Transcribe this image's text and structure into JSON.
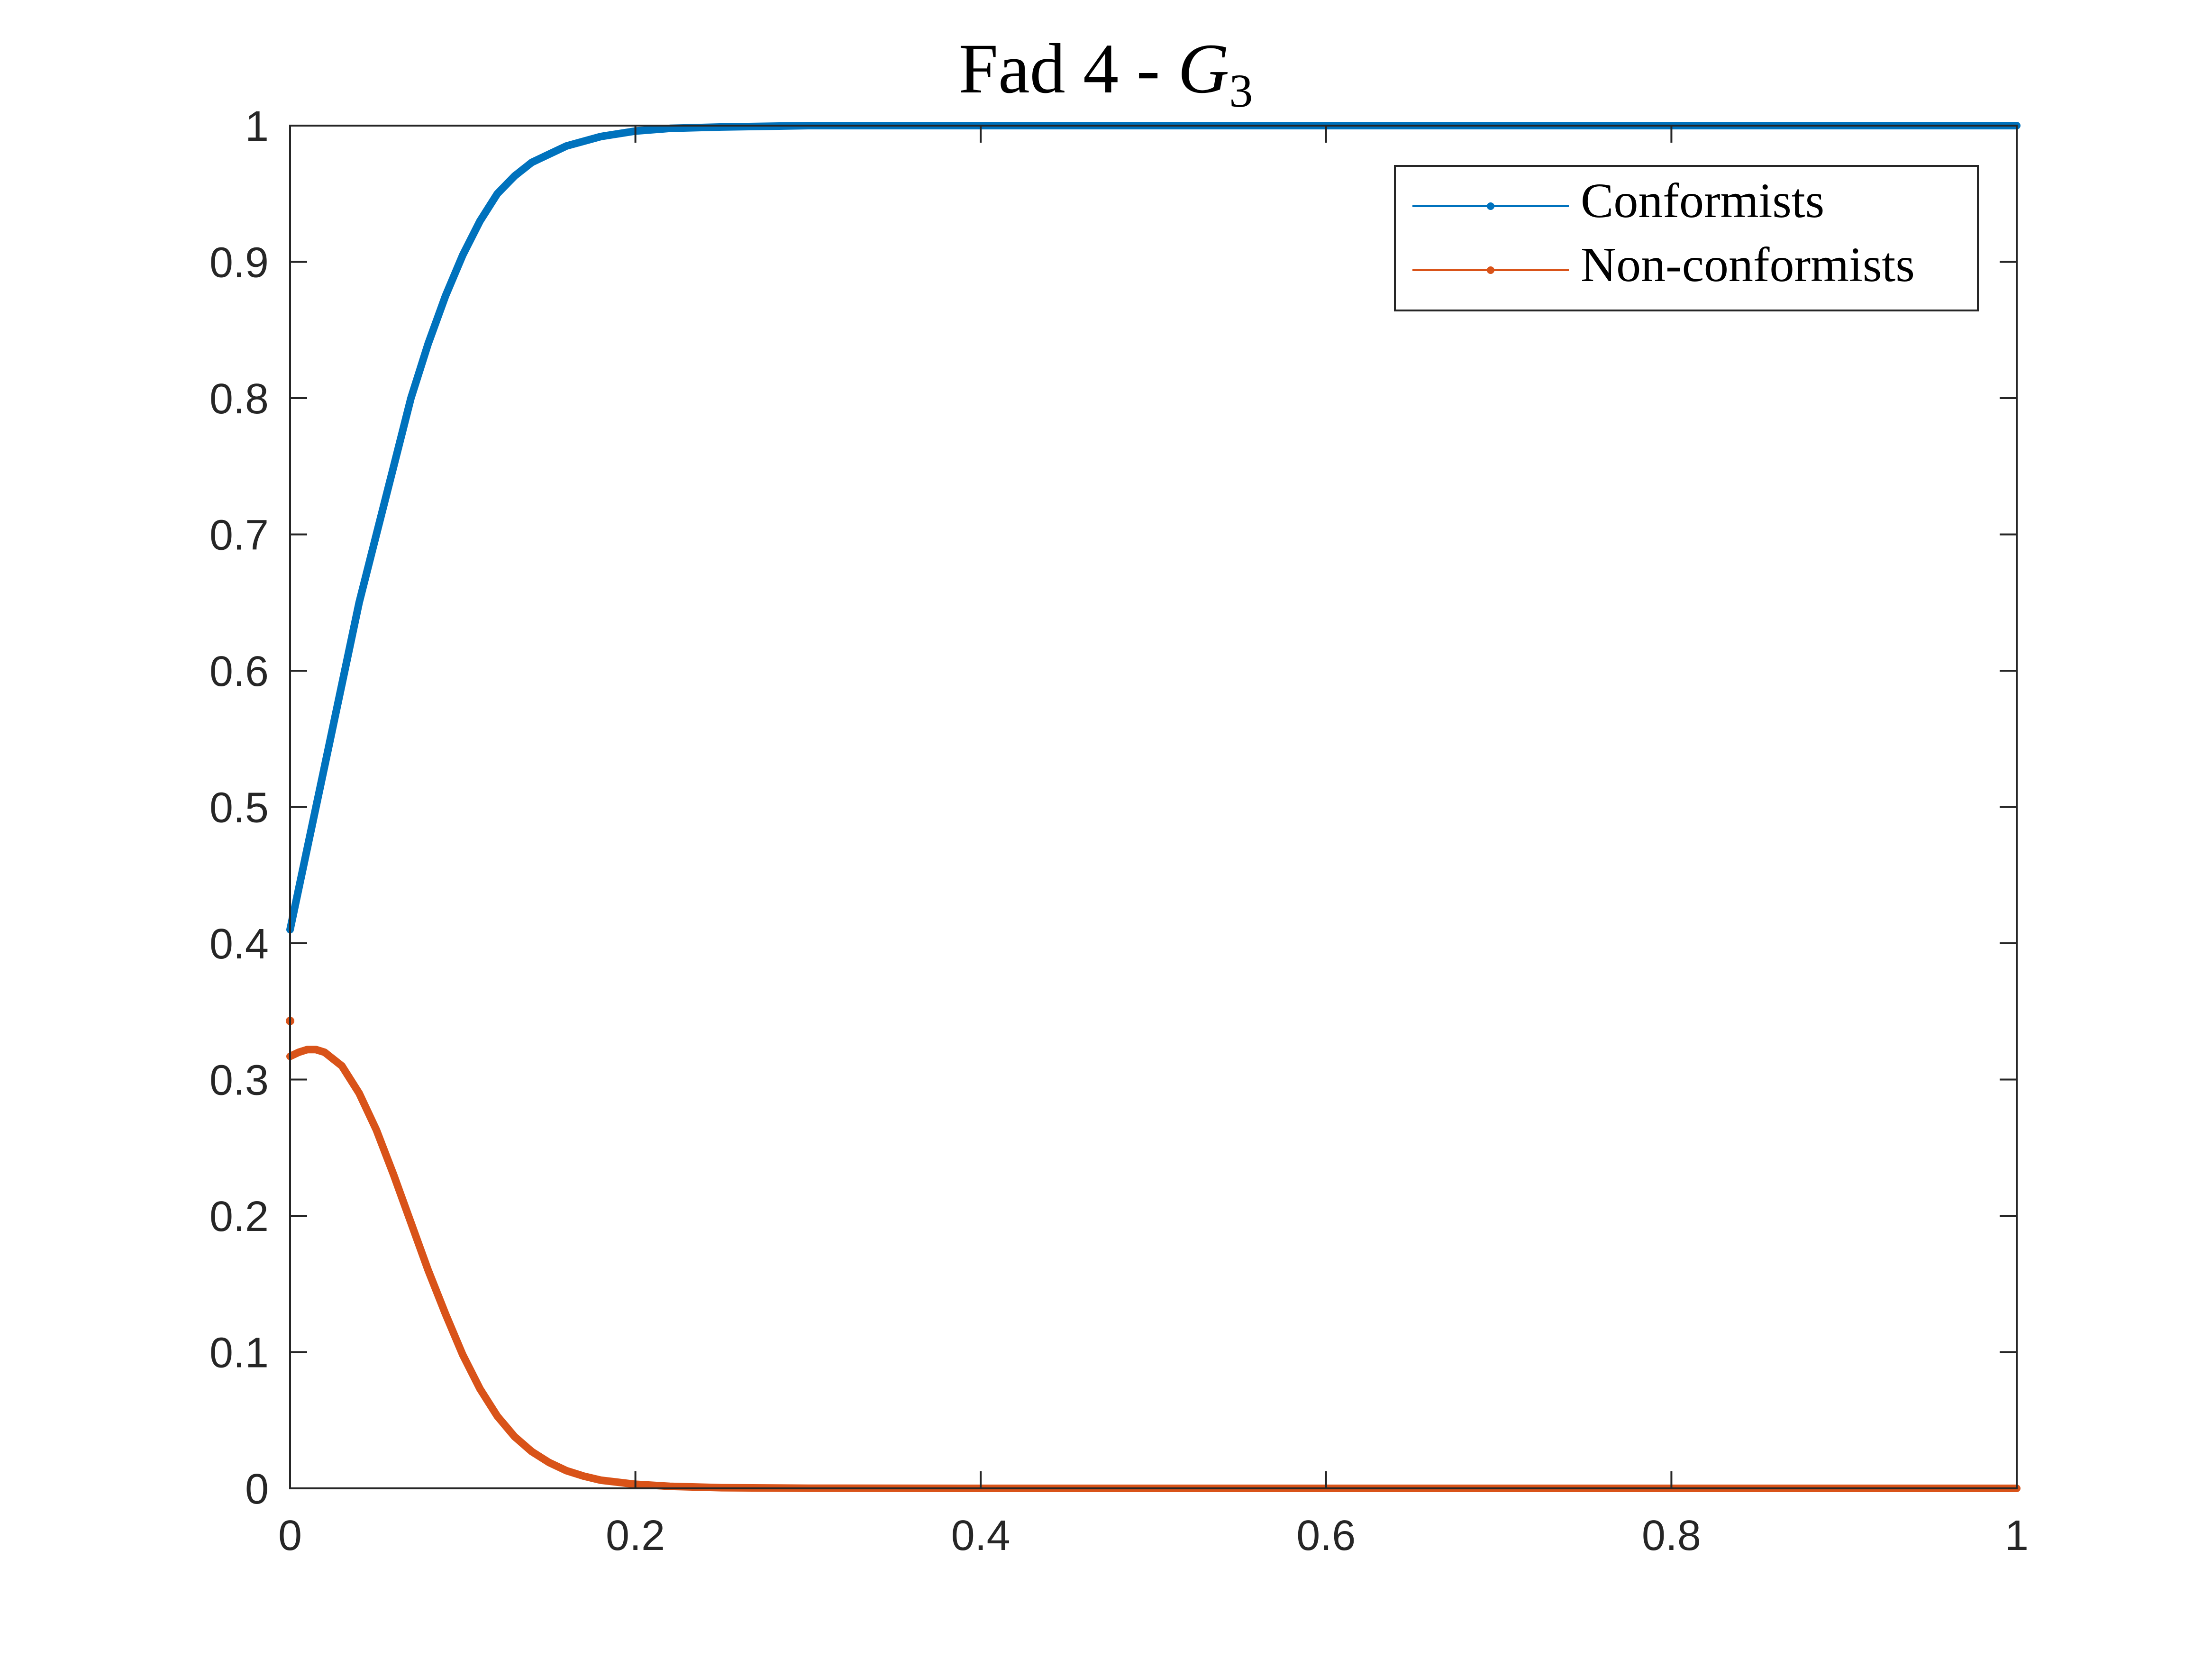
{
  "chart_data": {
    "type": "line",
    "title": {
      "prefix": "Fad 4 - ",
      "symbol": "G",
      "subscript": "3"
    },
    "xlabel": "",
    "ylabel": "",
    "xlim": [
      0,
      1
    ],
    "ylim": [
      0,
      1
    ],
    "x_ticks": [
      "0",
      "0.2",
      "0.4",
      "0.6",
      "0.8",
      "1"
    ],
    "y_ticks": [
      "0",
      "0.1",
      "0.2",
      "0.3",
      "0.4",
      "0.5",
      "0.6",
      "0.7",
      "0.8",
      "0.9",
      "1"
    ],
    "grid": false,
    "legend_position": "top-right",
    "series": [
      {
        "name": "Conformists",
        "color": "#0072BD",
        "points": [
          [
            0.0,
            0.41
          ],
          [
            0.01,
            0.47
          ],
          [
            0.02,
            0.53
          ],
          [
            0.03,
            0.59
          ],
          [
            0.04,
            0.65
          ],
          [
            0.05,
            0.7
          ],
          [
            0.06,
            0.75
          ],
          [
            0.07,
            0.8
          ],
          [
            0.08,
            0.84
          ],
          [
            0.09,
            0.875
          ],
          [
            0.1,
            0.905
          ],
          [
            0.11,
            0.93
          ],
          [
            0.12,
            0.95
          ],
          [
            0.13,
            0.963
          ],
          [
            0.14,
            0.973
          ],
          [
            0.16,
            0.985
          ],
          [
            0.18,
            0.992
          ],
          [
            0.2,
            0.996
          ],
          [
            0.22,
            0.998
          ],
          [
            0.25,
            0.999
          ],
          [
            0.3,
            1.0
          ],
          [
            0.4,
            1.0
          ],
          [
            0.5,
            1.0
          ],
          [
            0.6,
            1.0
          ],
          [
            0.7,
            1.0
          ],
          [
            0.8,
            1.0
          ],
          [
            0.9,
            1.0
          ],
          [
            1.0,
            1.0
          ]
        ]
      },
      {
        "name": "Non-conformists",
        "color": "#D95319",
        "start_marker": [
          0.0,
          0.343
        ],
        "points": [
          [
            0.0,
            0.317
          ],
          [
            0.005,
            0.32
          ],
          [
            0.01,
            0.322
          ],
          [
            0.015,
            0.322
          ],
          [
            0.02,
            0.32
          ],
          [
            0.03,
            0.31
          ],
          [
            0.04,
            0.29
          ],
          [
            0.05,
            0.263
          ],
          [
            0.06,
            0.23
          ],
          [
            0.07,
            0.195
          ],
          [
            0.08,
            0.16
          ],
          [
            0.09,
            0.128
          ],
          [
            0.1,
            0.098
          ],
          [
            0.11,
            0.073
          ],
          [
            0.12,
            0.053
          ],
          [
            0.13,
            0.038
          ],
          [
            0.14,
            0.027
          ],
          [
            0.15,
            0.019
          ],
          [
            0.16,
            0.013
          ],
          [
            0.17,
            0.009
          ],
          [
            0.18,
            0.006
          ],
          [
            0.2,
            0.003
          ],
          [
            0.22,
            0.0015
          ],
          [
            0.25,
            0.0005
          ],
          [
            0.3,
            0.0001
          ],
          [
            0.4,
            0.0
          ],
          [
            0.6,
            0.0
          ],
          [
            0.8,
            0.0
          ],
          [
            1.0,
            0.0
          ]
        ]
      }
    ]
  }
}
